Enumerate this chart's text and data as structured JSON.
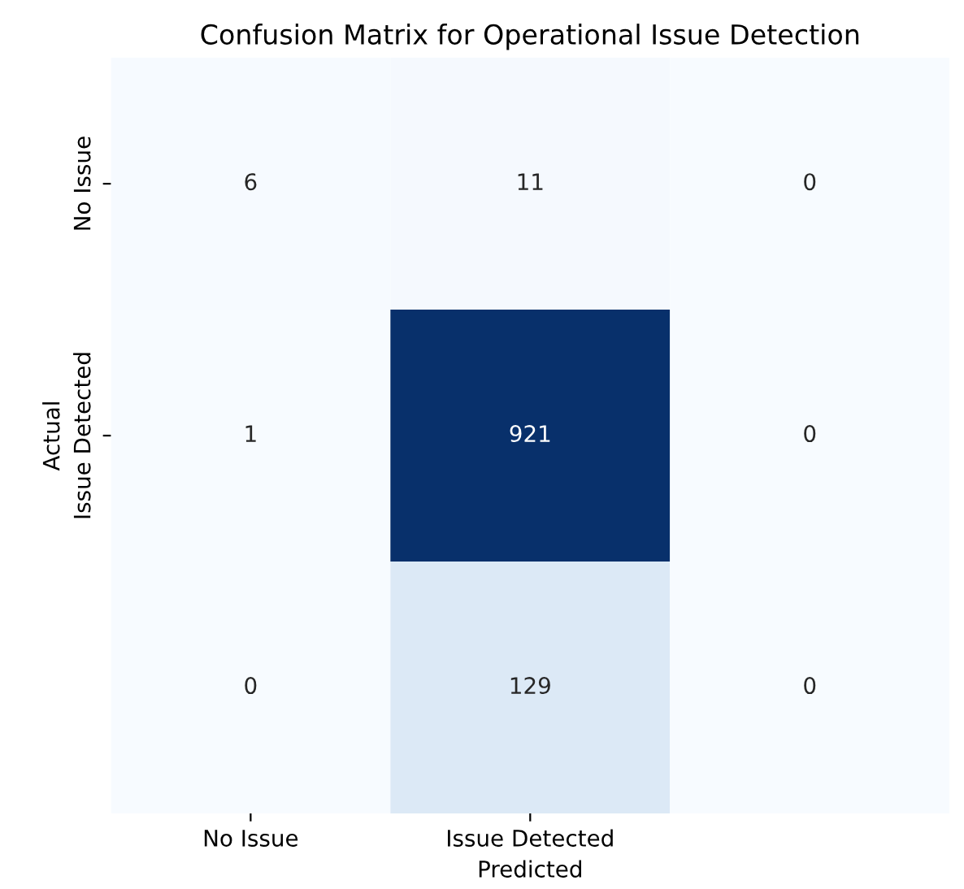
{
  "chart_data": {
    "type": "heatmap",
    "title": "Confusion Matrix for Operational Issue Detection",
    "xlabel": "Predicted",
    "ylabel": "Actual",
    "categories": [
      "No Issue",
      "Issue Detected",
      null
    ],
    "y_categories": [
      "No Issue",
      "Issue Detected",
      null
    ],
    "cells": [
      [
        6,
        11,
        0
      ],
      [
        1,
        921,
        0
      ],
      [
        0,
        129,
        0
      ]
    ],
    "data_labels": true
  }
}
